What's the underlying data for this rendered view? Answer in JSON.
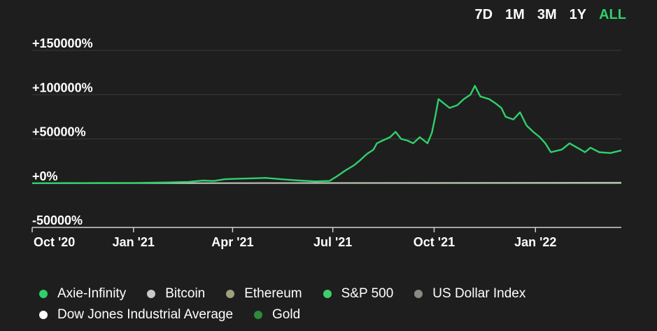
{
  "ranges": {
    "items": [
      {
        "label": "7D",
        "active": false
      },
      {
        "label": "1M",
        "active": false
      },
      {
        "label": "3M",
        "active": false
      },
      {
        "label": "1Y",
        "active": false
      },
      {
        "label": "ALL",
        "active": true
      }
    ],
    "active_color": "#2fd06b"
  },
  "chart_data": {
    "type": "line",
    "title": "",
    "xlabel": "",
    "ylabel": "",
    "x_tick_labels": [
      "Oct '20",
      "Jan '21",
      "Apr '21",
      "Jul '21",
      "Oct '21",
      "Jan '22"
    ],
    "x_tick_dates": [
      "2020-10-01",
      "2021-01-01",
      "2021-04-01",
      "2021-07-01",
      "2021-10-01",
      "2022-01-01"
    ],
    "y_tick_labels": [
      "+150000%",
      "+100000%",
      "+50000%",
      "+0%",
      "-50000%"
    ],
    "y_tick_values": [
      150000,
      100000,
      50000,
      0,
      -50000
    ],
    "ylim": [
      -50000,
      150000
    ],
    "xlim": [
      "2020-10-01",
      "2022-03-20"
    ],
    "grid": true,
    "legend_position": "bottom",
    "series": [
      {
        "name": "Axie-Infinity",
        "color": "#2fd06b",
        "points": [
          [
            "2020-10-01",
            0
          ],
          [
            "2020-11-01",
            100
          ],
          [
            "2020-12-01",
            200
          ],
          [
            "2021-01-01",
            300
          ],
          [
            "2021-02-01",
            800
          ],
          [
            "2021-02-20",
            1500
          ],
          [
            "2021-03-05",
            3000
          ],
          [
            "2021-03-15",
            2500
          ],
          [
            "2021-03-25",
            4500
          ],
          [
            "2021-04-05",
            5000
          ],
          [
            "2021-04-20",
            5500
          ],
          [
            "2021-05-01",
            6000
          ],
          [
            "2021-05-10",
            5000
          ],
          [
            "2021-05-20",
            4000
          ],
          [
            "2021-06-01",
            3000
          ],
          [
            "2021-06-15",
            2000
          ],
          [
            "2021-06-28",
            2500
          ],
          [
            "2021-07-05",
            8000
          ],
          [
            "2021-07-12",
            14000
          ],
          [
            "2021-07-20",
            20000
          ],
          [
            "2021-07-25",
            25000
          ],
          [
            "2021-08-01",
            33000
          ],
          [
            "2021-08-07",
            38000
          ],
          [
            "2021-08-10",
            45000
          ],
          [
            "2021-08-15",
            48000
          ],
          [
            "2021-08-22",
            52000
          ],
          [
            "2021-08-27",
            58000
          ],
          [
            "2021-09-01",
            50000
          ],
          [
            "2021-09-07",
            48000
          ],
          [
            "2021-09-12",
            45000
          ],
          [
            "2021-09-18",
            52000
          ],
          [
            "2021-09-25",
            45000
          ],
          [
            "2021-09-29",
            57000
          ],
          [
            "2021-10-02",
            75000
          ],
          [
            "2021-10-05",
            95000
          ],
          [
            "2021-10-10",
            90000
          ],
          [
            "2021-10-15",
            85000
          ],
          [
            "2021-10-22",
            88000
          ],
          [
            "2021-10-28",
            95000
          ],
          [
            "2021-11-03",
            100000
          ],
          [
            "2021-11-07",
            110000
          ],
          [
            "2021-11-12",
            98000
          ],
          [
            "2021-11-20",
            95000
          ],
          [
            "2021-11-26",
            90000
          ],
          [
            "2021-12-01",
            85000
          ],
          [
            "2021-12-05",
            75000
          ],
          [
            "2021-12-12",
            72000
          ],
          [
            "2021-12-18",
            80000
          ],
          [
            "2021-12-24",
            65000
          ],
          [
            "2021-12-30",
            58000
          ],
          [
            "2022-01-05",
            52000
          ],
          [
            "2022-01-10",
            45000
          ],
          [
            "2022-01-15",
            35000
          ],
          [
            "2022-01-25",
            38000
          ],
          [
            "2022-02-01",
            45000
          ],
          [
            "2022-02-08",
            40000
          ],
          [
            "2022-02-15",
            35000
          ],
          [
            "2022-02-20",
            40000
          ],
          [
            "2022-02-28",
            35000
          ],
          [
            "2022-03-10",
            34000
          ],
          [
            "2022-03-20",
            37000
          ]
        ]
      },
      {
        "name": "Bitcoin",
        "color": "#c8c8c8",
        "points": [
          [
            "2020-10-01",
            0
          ],
          [
            "2022-03-20",
            300
          ]
        ]
      },
      {
        "name": "Ethereum",
        "color": "#a0a080",
        "points": [
          [
            "2020-10-01",
            0
          ],
          [
            "2022-03-20",
            800
          ]
        ]
      },
      {
        "name": "S&P 500",
        "color": "#3ecf6a",
        "points": [
          [
            "2020-10-01",
            0
          ],
          [
            "2022-03-20",
            30
          ]
        ]
      },
      {
        "name": "US Dollar Index",
        "color": "#8a8a80",
        "points": [
          [
            "2020-10-01",
            0
          ],
          [
            "2022-03-20",
            0
          ]
        ]
      },
      {
        "name": "Dow Jones Industrial Average",
        "color": "#ffffff",
        "points": [
          [
            "2020-10-01",
            0
          ],
          [
            "2022-03-20",
            20
          ]
        ]
      },
      {
        "name": "Gold",
        "color": "#2e8a3c",
        "points": [
          [
            "2020-10-01",
            0
          ],
          [
            "2022-03-20",
            0
          ]
        ]
      }
    ]
  }
}
